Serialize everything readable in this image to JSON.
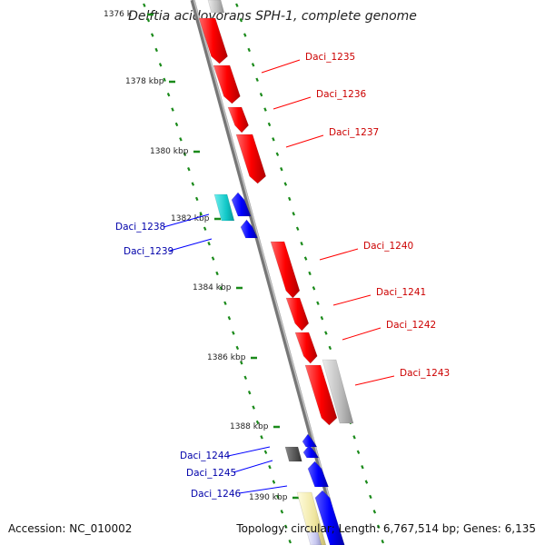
{
  "title": "Delftia acidovorans SPH-1, complete genome",
  "footer": {
    "accession": "Accession: NC_010002",
    "summary": "Topology: circular; Length: 6,767,514 bp; Genes: 6,135"
  },
  "colors": {
    "forward_gene": "#ff0000",
    "reverse_gene": "#0000ff",
    "forward_label": "#cc0000",
    "reverse_label": "#0000aa",
    "tick": "#1a8a1a",
    "backbone": "#888888"
  },
  "kbp_labels": [
    "1376 k",
    "1378 kbp",
    "1380 kbp",
    "1382 kbp",
    "1384 kbp",
    "1386 kbp",
    "1388 kbp",
    "1390 kbp"
  ],
  "genes_forward": [
    "Daci_1235",
    "Daci_1236",
    "Daci_1237",
    "Daci_1240",
    "Daci_1241",
    "Daci_1242",
    "Daci_1243"
  ],
  "genes_reverse": [
    "Daci_1238",
    "Daci_1239",
    "Daci_1244",
    "Daci_1245",
    "Daci_1246"
  ]
}
